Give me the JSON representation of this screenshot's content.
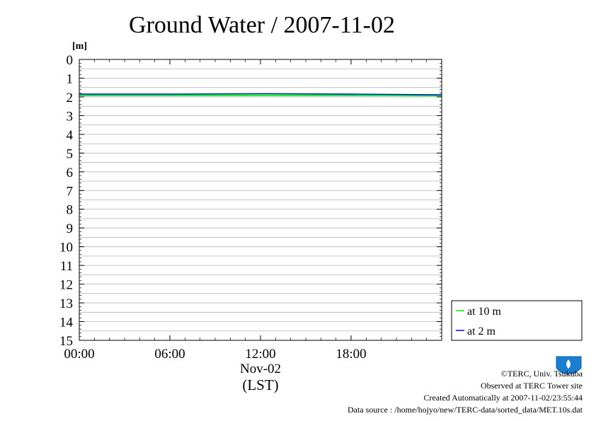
{
  "chart_data": {
    "type": "line",
    "title": "Ground Water / 2007-11-02",
    "ylabel": "[m]",
    "xlabel": "(LST)",
    "x_date_label": "Nov-02",
    "ylim": [
      0,
      15
    ],
    "y_inverted": true,
    "y_ticks": [
      "0",
      "1",
      "2",
      "3",
      "4",
      "5",
      "6",
      "7",
      "8",
      "9",
      "10",
      "11",
      "12",
      "13",
      "14",
      "15"
    ],
    "xlim": [
      "00:00",
      "24:00"
    ],
    "x_ticks": [
      "00:00",
      "06:00",
      "12:00",
      "18:00"
    ],
    "grid": true,
    "legend_position": "bottom-right-outside",
    "series": [
      {
        "name": "at 10 m",
        "color": "#00ff00",
        "x": [
          "00:00",
          "06:00",
          "12:00",
          "18:00",
          "24:00"
        ],
        "values": [
          1.92,
          1.92,
          1.91,
          1.92,
          1.93
        ]
      },
      {
        "name": "at 2 m",
        "color": "#0000ff",
        "x": [
          "00:00",
          "06:00",
          "12:00",
          "18:00",
          "24:00"
        ],
        "values": [
          1.85,
          1.85,
          1.83,
          1.85,
          1.89
        ]
      }
    ]
  },
  "footer": {
    "copyright": "©TERC, Univ. Tsukuba",
    "site": "Observed at TERC Tower site",
    "created": "Created Automatically at 2007-11-02/23:55:44",
    "source": "Data source : /home/hojyo/new/TERC-data/sorted_data/MET.10s.dat",
    "logo_text": "TERC"
  }
}
